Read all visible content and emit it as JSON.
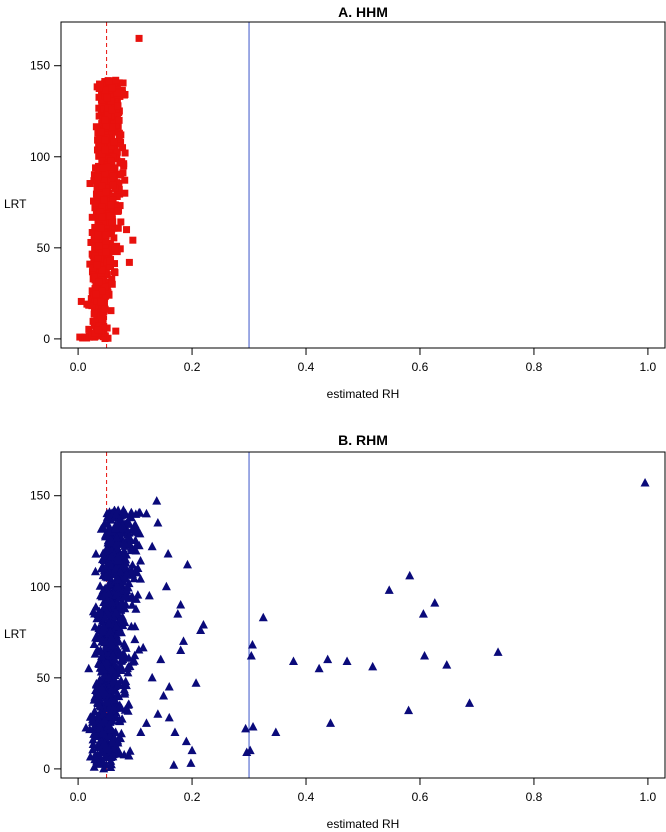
{
  "chart_data": [
    {
      "type": "scatter",
      "title": "A. HHM",
      "xlabel": "estimated RH",
      "ylabel": "LRT",
      "xlim": [
        -0.03,
        1.03
      ],
      "ylim": [
        -5,
        174
      ],
      "xticks": [
        "0.0",
        "0.2",
        "0.4",
        "0.6",
        "0.8",
        "1.0"
      ],
      "yticks": [
        "0",
        "50",
        "100",
        "150"
      ],
      "marker": "square",
      "marker_color": "#e8110d",
      "vlines": [
        {
          "x": 0.05,
          "style": "dashed",
          "color": "#e8110d"
        },
        {
          "x": 0.3,
          "style": "solid",
          "color": "#3b55c9"
        }
      ],
      "grid": false,
      "points": [
        [
          0.107,
          165
        ],
        [
          0.003,
          1
        ],
        [
          0.008,
          0.5
        ],
        [
          0.012,
          1
        ],
        [
          0.015,
          0.5
        ],
        [
          0.02,
          1
        ],
        [
          0.025,
          2
        ],
        [
          0.03,
          3
        ],
        [
          0.035,
          5
        ],
        [
          0.09,
          42
        ],
        [
          0.085,
          60
        ],
        [
          0.082,
          80
        ],
        [
          0.08,
          95
        ],
        [
          0.078,
          105
        ],
        [
          0.075,
          112
        ],
        [
          0.072,
          120
        ],
        [
          0.07,
          128
        ],
        [
          0.068,
          135
        ],
        [
          0.066,
          142
        ],
        [
          0.06,
          138
        ],
        [
          0.075,
          90
        ],
        [
          0.07,
          70
        ],
        [
          0.065,
          50
        ],
        [
          0.06,
          30
        ]
      ],
      "cloud": {
        "x_center": 0.048,
        "x_spread": 0.02,
        "slope": 0.00014,
        "n": 900
      }
    },
    {
      "type": "scatter",
      "title": "B. RHM",
      "xlabel": "estimated RH",
      "ylabel": "LRT",
      "xlim": [
        -0.03,
        1.03
      ],
      "ylim": [
        -5,
        174
      ],
      "xticks": [
        "0.0",
        "0.2",
        "0.4",
        "0.6",
        "0.8",
        "1.0"
      ],
      "yticks": [
        "0",
        "50",
        "100",
        "150"
      ],
      "marker": "triangle",
      "marker_color": "#0a0a7a",
      "vlines": [
        {
          "x": 0.05,
          "style": "dashed",
          "color": "#e8110d"
        },
        {
          "x": 0.3,
          "style": "solid",
          "color": "#3b55c9"
        }
      ],
      "grid": false,
      "points": [
        [
          0.995,
          157
        ],
        [
          0.138,
          147
        ],
        [
          0.12,
          140
        ],
        [
          0.14,
          135
        ],
        [
          0.1,
          130
        ],
        [
          0.13,
          122
        ],
        [
          0.158,
          118
        ],
        [
          0.192,
          112
        ],
        [
          0.155,
          100
        ],
        [
          0.18,
          90
        ],
        [
          0.175,
          85
        ],
        [
          0.22,
          79
        ],
        [
          0.215,
          76
        ],
        [
          0.185,
          70
        ],
        [
          0.18,
          65
        ],
        [
          0.207,
          47
        ],
        [
          0.16,
          45
        ],
        [
          0.15,
          40
        ],
        [
          0.14,
          30
        ],
        [
          0.16,
          28
        ],
        [
          0.17,
          20
        ],
        [
          0.19,
          15
        ],
        [
          0.2,
          10
        ],
        [
          0.168,
          2
        ],
        [
          0.198,
          3
        ],
        [
          0.294,
          22
        ],
        [
          0.307,
          23
        ],
        [
          0.296,
          9
        ],
        [
          0.302,
          10
        ],
        [
          0.304,
          62
        ],
        [
          0.306,
          68
        ],
        [
          0.325,
          83
        ],
        [
          0.347,
          20
        ],
        [
          0.378,
          59
        ],
        [
          0.423,
          55
        ],
        [
          0.438,
          60
        ],
        [
          0.443,
          25
        ],
        [
          0.472,
          59
        ],
        [
          0.517,
          56
        ],
        [
          0.546,
          98
        ],
        [
          0.582,
          106
        ],
        [
          0.58,
          32
        ],
        [
          0.606,
          85
        ],
        [
          0.608,
          62
        ],
        [
          0.626,
          91
        ],
        [
          0.647,
          57
        ],
        [
          0.687,
          36
        ],
        [
          0.737,
          64
        ],
        [
          0.12,
          25
        ],
        [
          0.11,
          20
        ],
        [
          0.13,
          50
        ],
        [
          0.145,
          60
        ],
        [
          0.125,
          95
        ],
        [
          0.105,
          110
        ]
      ],
      "cloud": {
        "x_center": 0.06,
        "x_spread": 0.03,
        "slope": 0.0002,
        "n": 850
      }
    }
  ]
}
